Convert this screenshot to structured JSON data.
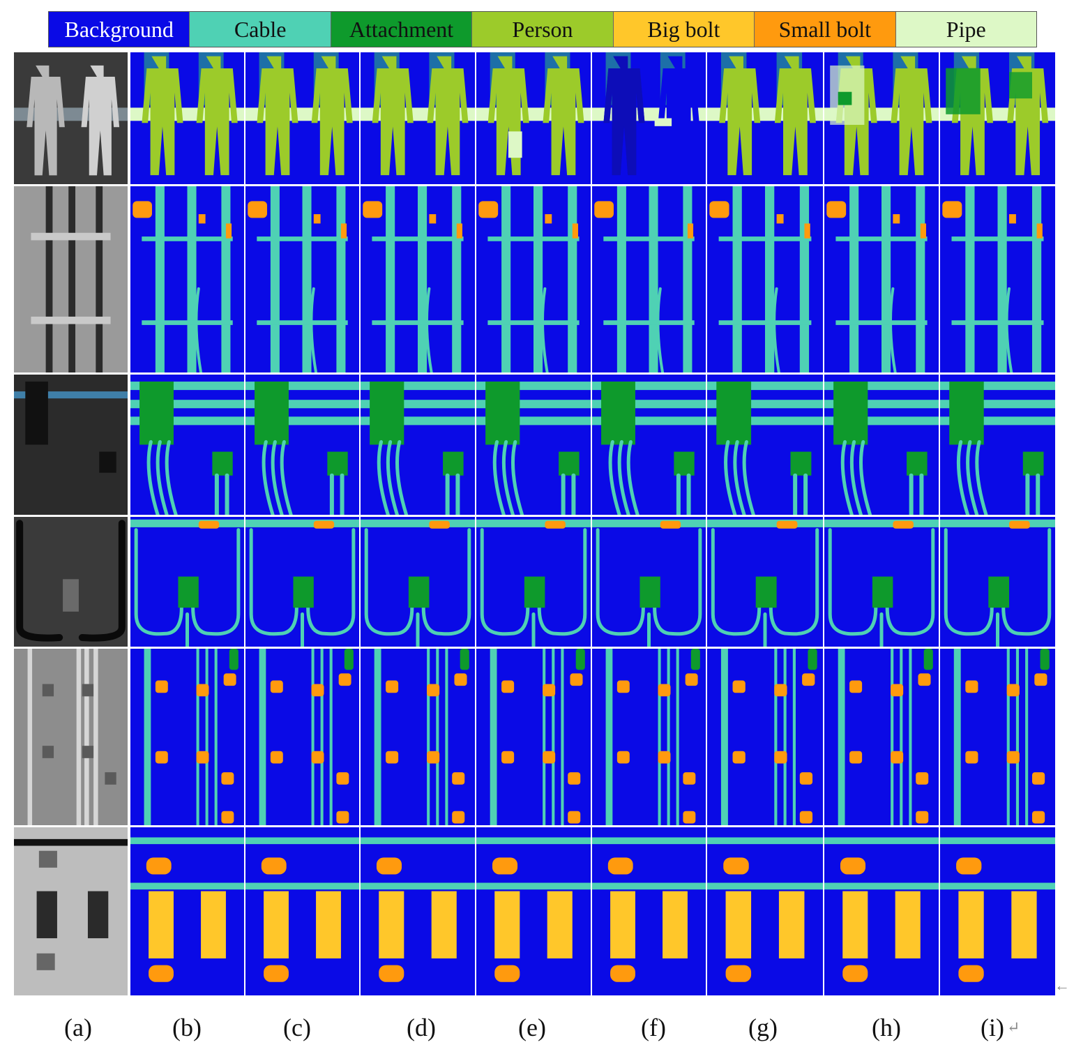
{
  "legend": [
    {
      "label": "Background",
      "color": "#0A0AE6",
      "text": "light"
    },
    {
      "label": "Cable",
      "color": "#4FD1B4",
      "text": "dark"
    },
    {
      "label": "Attachment",
      "color": "#0E9A2C",
      "text": "dark"
    },
    {
      "label": "Person",
      "color": "#9CCB2A",
      "text": "dark"
    },
    {
      "label": "Big bolt",
      "color": "#FFC72A",
      "text": "dark"
    },
    {
      "label": "Small bolt",
      "color": "#FF9A0E",
      "text": "dark"
    },
    {
      "label": "Pipe",
      "color": "#DDF8C6",
      "text": "dark"
    }
  ],
  "column_labels": [
    "(a)",
    "(b)",
    "(c)",
    "(d)",
    "(e)",
    "(f)",
    "(g)",
    "(h)",
    "(i)"
  ],
  "row_scenes": [
    "persons",
    "vertical-cables",
    "attachment-cluster",
    "junction-box",
    "bolts-and-cables",
    "big-bolts"
  ],
  "marks": {
    "arrow": "←",
    "return": "↵"
  }
}
